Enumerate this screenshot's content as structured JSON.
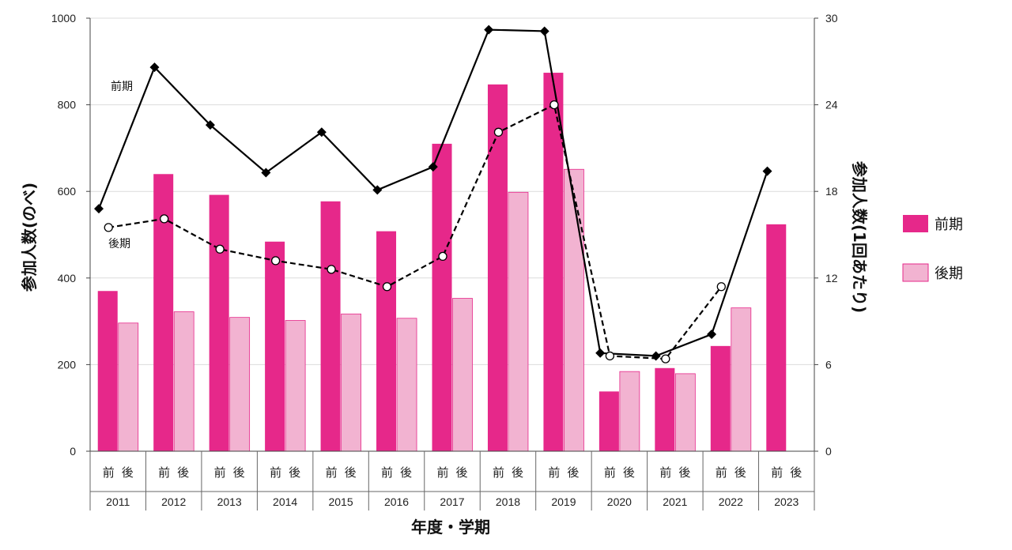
{
  "chart_data": {
    "type": "bar",
    "categories": [
      "2011",
      "2012",
      "2013",
      "2014",
      "2015",
      "2016",
      "2017",
      "2018",
      "2019",
      "2020",
      "2021",
      "2022",
      "2023"
    ],
    "semester_labels": [
      "前",
      "後"
    ],
    "xlabel": "年度・学期",
    "ylabel": "参加人数(のべ)",
    "y2label": "参加人数(1回あたり)",
    "ylim": [
      0,
      1000
    ],
    "y_ticks": [
      0,
      200,
      400,
      600,
      800,
      1000
    ],
    "y2lim": [
      0,
      30
    ],
    "y2_ticks": [
      0,
      6,
      12,
      18,
      24,
      30
    ],
    "series": [
      {
        "name": "前期",
        "kind": "bar",
        "axis": "left",
        "color": "#e6288a",
        "values": [
          370,
          640,
          592,
          484,
          577,
          508,
          710,
          847,
          874,
          138,
          192,
          243,
          524
        ]
      },
      {
        "name": "後期",
        "kind": "bar",
        "axis": "left",
        "color": "#f2b3d1",
        "values": [
          296,
          322,
          309,
          302,
          317,
          307,
          353,
          598,
          651,
          184,
          179,
          331,
          null
        ]
      },
      {
        "name": "前期",
        "kind": "line",
        "axis": "right",
        "style": "solid",
        "marker": "diamond",
        "values": [
          16.8,
          26.6,
          22.6,
          19.3,
          22.1,
          18.1,
          19.7,
          29.2,
          29.1,
          6.8,
          6.6,
          8.1,
          19.4
        ]
      },
      {
        "name": "後期",
        "kind": "line",
        "axis": "right",
        "style": "dashed",
        "marker": "circle",
        "values": [
          15.5,
          16.1,
          14.0,
          13.2,
          12.6,
          11.4,
          13.5,
          22.1,
          24.0,
          6.6,
          6.4,
          11.4,
          null
        ]
      }
    ],
    "annotations": [
      "前期",
      "後期"
    ],
    "legend": [
      "前期",
      "後期"
    ],
    "legend_position": "right",
    "grid": true
  }
}
